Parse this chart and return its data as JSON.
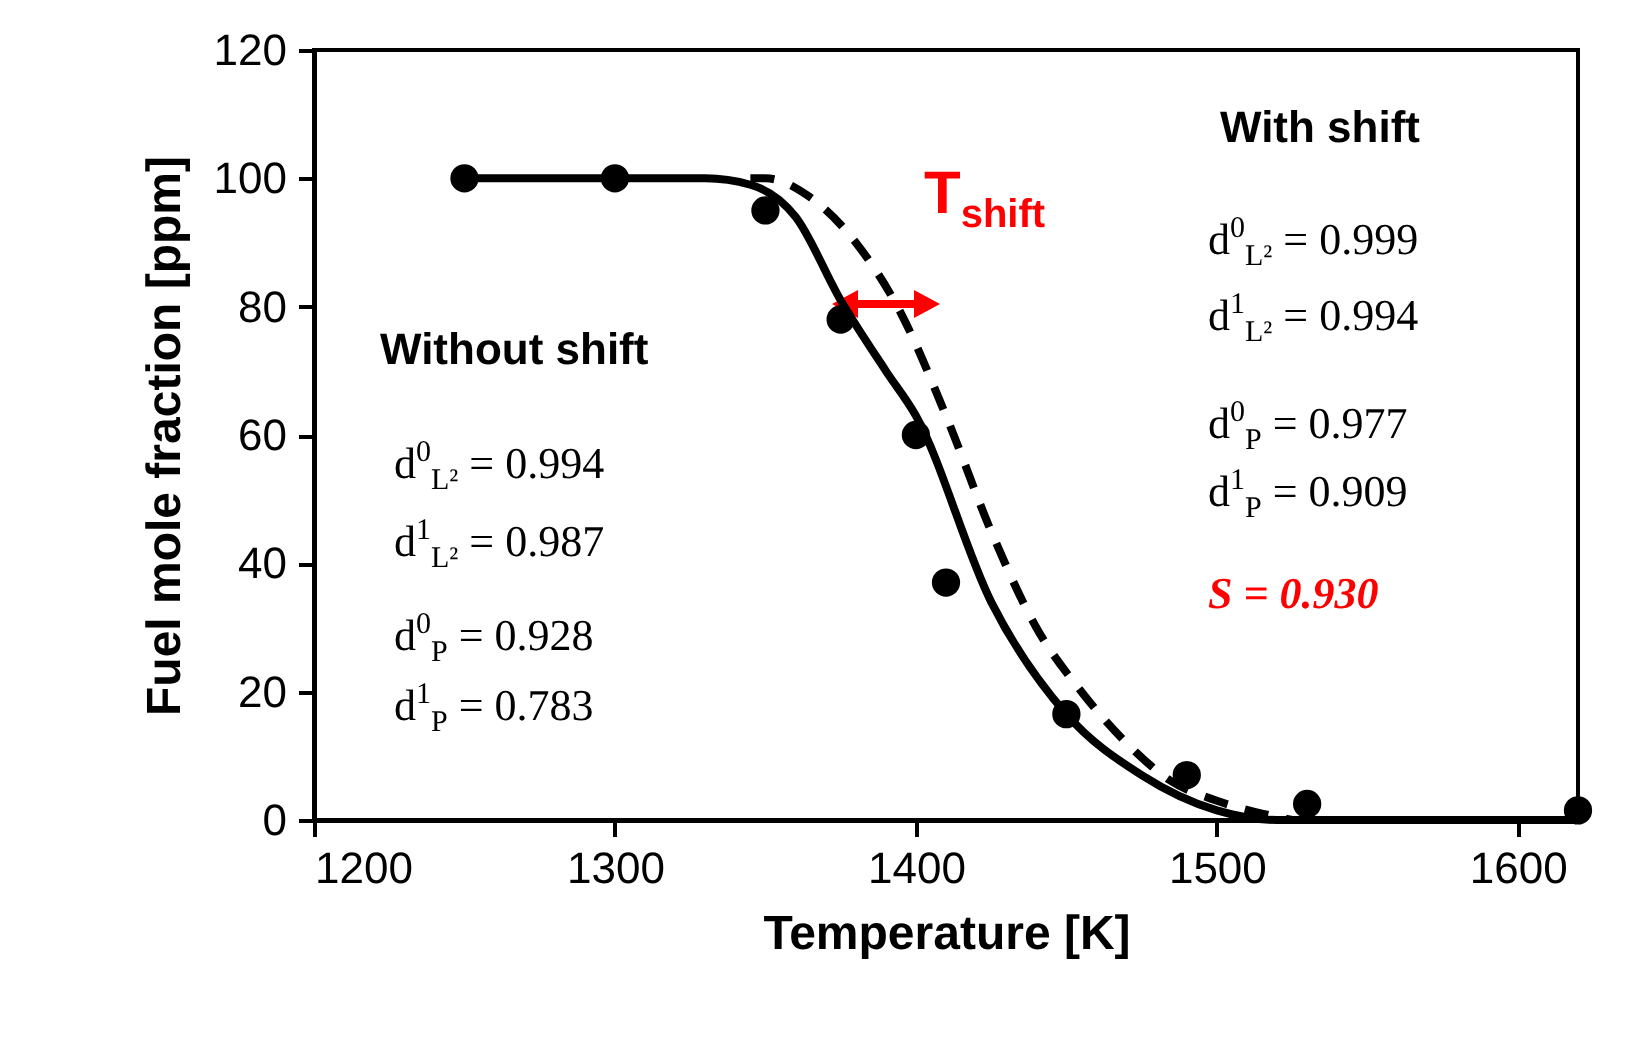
{
  "chart_data": {
    "type": "line",
    "xlabel": "Temperature [K]",
    "ylabel": "Fuel mole fraction [ppm]",
    "xlim": [
      1200,
      1620
    ],
    "xticks": [
      1200,
      1300,
      1400,
      1500,
      1600
    ],
    "ylim": [
      0,
      120
    ],
    "yticks": [
      0,
      20,
      40,
      60,
      80,
      100,
      120
    ],
    "grid": false,
    "series": [
      {
        "color": "#000000",
        "line_style": "solid",
        "x": [
          1250,
          1300,
          1330,
          1345,
          1360,
          1375,
          1390,
          1400,
          1425,
          1450,
          1475,
          1500,
          1520,
          1620
        ],
        "values": [
          100,
          100,
          100,
          99,
          94,
          81,
          70,
          63,
          34,
          16.5,
          7,
          1.5,
          0,
          0
        ]
      },
      {
        "color": "#000000",
        "line_style": "dashed",
        "x": [
          1345,
          1350,
          1365,
          1380,
          1395,
          1410,
          1425,
          1440,
          1455,
          1470,
          1485,
          1500,
          1515,
          1525
        ],
        "values": [
          100,
          100,
          97,
          90,
          79,
          63,
          45,
          30,
          20,
          12,
          6,
          3,
          1,
          0
        ]
      },
      {
        "type": "scatter",
        "color": "#000000",
        "marker": "circle",
        "x": [
          1250,
          1300,
          1350,
          1375,
          1400,
          1410,
          1450,
          1490,
          1530,
          1620
        ],
        "values": [
          100,
          100,
          95,
          78,
          60,
          37,
          16.5,
          7,
          2.5,
          1.5
        ]
      }
    ],
    "annotations": [
      "T$_{shift}$",
      "Without shift",
      "d$^{0}$$_{L²}$ = 0.994",
      "d$^{1}$$_{L²}$ = 0.987",
      "d$^{0}$$_{P}$ = 0.928",
      "d$^{1}$$_{P}$ = 0.783",
      "With shift",
      "d$^{0}$$_{L²}$ = 0.999",
      "d$^{1}$$_{L²}$ = 0.994",
      "d$^{0}$$_{P}$ = 0.977",
      "d$^{1}$$_{P}$ = 0.909",
      "S = 0.930"
    ]
  }
}
